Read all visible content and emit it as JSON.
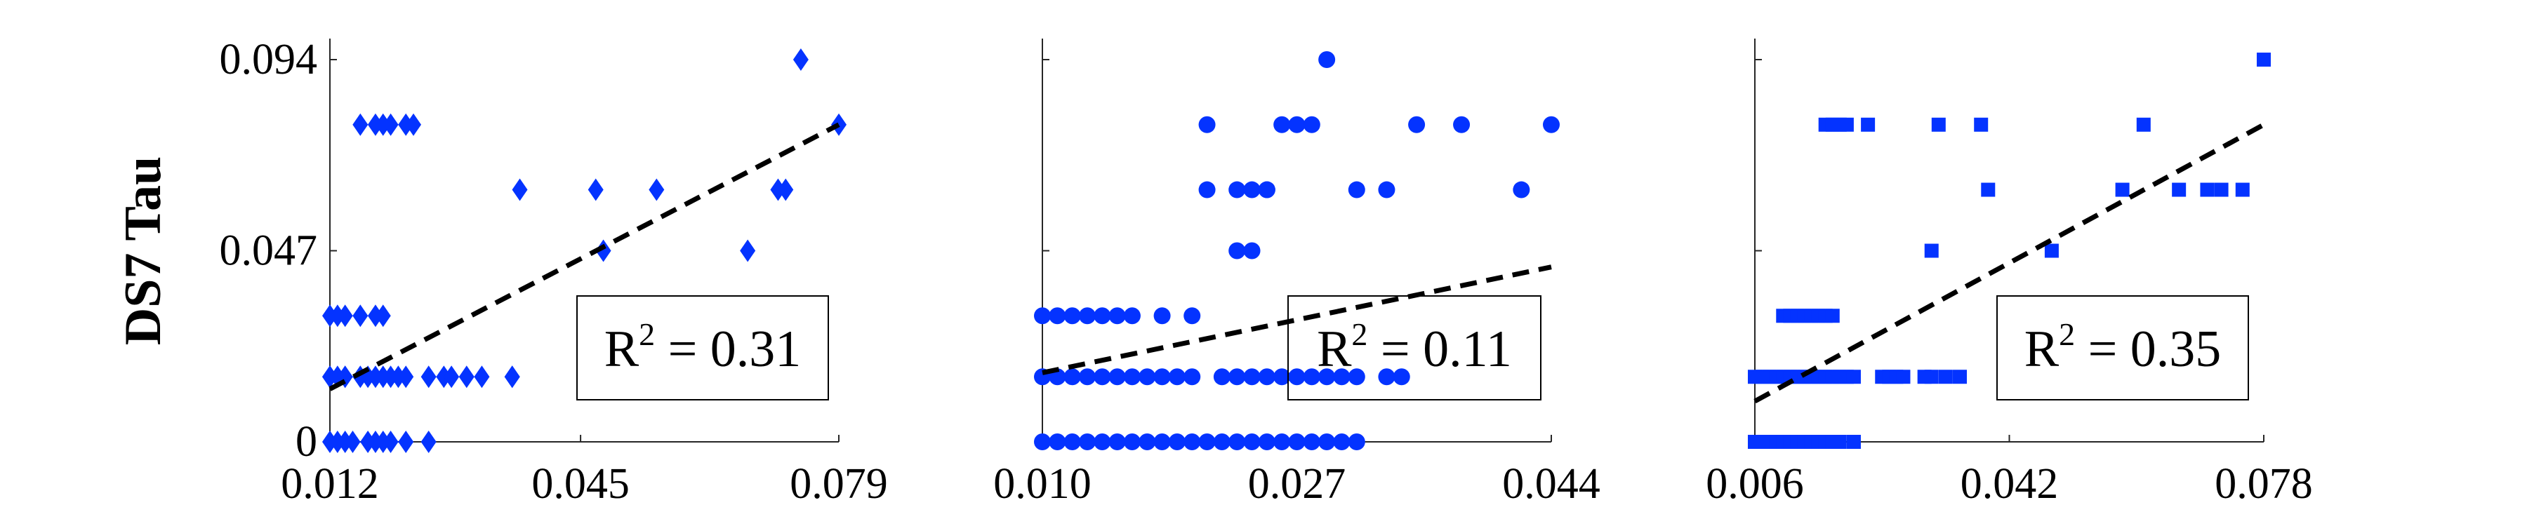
{
  "chart_data": [
    {
      "type": "scatter",
      "marker": "diamond",
      "color": "#0433ff",
      "ylabel": "DS7 Tau",
      "xlim": [
        0.012,
        0.079
      ],
      "ylim": [
        0,
        0.094
      ],
      "xticks": [
        "0.012",
        "0.045",
        "0.079"
      ],
      "yticks": [
        "0",
        "0.047",
        "0.094"
      ],
      "annotation": {
        "r2_base": "R",
        "r2_exp": "2",
        "r2_value": "= 0.31"
      },
      "trend": {
        "x": [
          0.012,
          0.079
        ],
        "y": [
          0.013,
          0.078
        ]
      },
      "x": [
        0.012,
        0.013,
        0.014,
        0.015,
        0.017,
        0.018,
        0.019,
        0.02,
        0.022,
        0.025,
        0.012,
        0.013,
        0.014,
        0.016,
        0.017,
        0.018,
        0.019,
        0.02,
        0.021,
        0.022,
        0.025,
        0.027,
        0.028,
        0.03,
        0.032,
        0.036,
        0.012,
        0.013,
        0.014,
        0.016,
        0.018,
        0.019,
        0.012,
        0.014,
        0.016,
        0.018,
        0.019,
        0.02,
        0.022,
        0.023,
        0.036,
        0.037,
        0.047,
        0.048,
        0.055,
        0.067,
        0.071,
        0.074,
        0.072,
        0.079
      ],
      "y": [
        0,
        0,
        0,
        0,
        0,
        0,
        0,
        0,
        0,
        0,
        0.016,
        0.016,
        0.016,
        0.016,
        0.016,
        0.016,
        0.016,
        0.016,
        0.016,
        0.016,
        0.016,
        0.016,
        0.016,
        0.016,
        0.016,
        0.016,
        0.031,
        0.031,
        0.031,
        0.031,
        0.031,
        0.031,
        0.016,
        0.016,
        0.078,
        0.078,
        0.078,
        0.078,
        0.078,
        0.078,
        0.016,
        0.062,
        0.062,
        0.047,
        0.062,
        0.047,
        0.062,
        0.094,
        0.062,
        0.078
      ]
    },
    {
      "type": "scatter",
      "marker": "circle",
      "color": "#0433ff",
      "xlim": [
        0.01,
        0.044
      ],
      "ylim": [
        0,
        0.094
      ],
      "xticks": [
        "0.010",
        "0.027",
        "0.044"
      ],
      "yticks": [
        "0",
        "0.047",
        "0.094"
      ],
      "annotation": {
        "r2_base": "R",
        "r2_exp": "2",
        "r2_value": "= 0.11"
      },
      "trend": {
        "x": [
          0.01,
          0.044
        ],
        "y": [
          0.017,
          0.043
        ]
      },
      "x": [
        0.01,
        0.011,
        0.012,
        0.013,
        0.014,
        0.015,
        0.016,
        0.017,
        0.018,
        0.019,
        0.02,
        0.021,
        0.022,
        0.023,
        0.024,
        0.025,
        0.026,
        0.027,
        0.028,
        0.029,
        0.03,
        0.031,
        0.01,
        0.011,
        0.012,
        0.013,
        0.014,
        0.015,
        0.016,
        0.017,
        0.018,
        0.019,
        0.02,
        0.022,
        0.023,
        0.024,
        0.025,
        0.026,
        0.027,
        0.028,
        0.029,
        0.03,
        0.031,
        0.033,
        0.034,
        0.01,
        0.011,
        0.012,
        0.013,
        0.014,
        0.015,
        0.016,
        0.018,
        0.02,
        0.023,
        0.024,
        0.025,
        0.021,
        0.021,
        0.023,
        0.024,
        0.025,
        0.026,
        0.027,
        0.028,
        0.029,
        0.031,
        0.033,
        0.035,
        0.038,
        0.042,
        0.044
      ],
      "y": [
        0,
        0,
        0,
        0,
        0,
        0,
        0,
        0,
        0,
        0,
        0,
        0,
        0,
        0,
        0,
        0,
        0,
        0,
        0,
        0,
        0,
        0,
        0.016,
        0.016,
        0.016,
        0.016,
        0.016,
        0.016,
        0.016,
        0.016,
        0.016,
        0.016,
        0.016,
        0.016,
        0.016,
        0.016,
        0.016,
        0.016,
        0.016,
        0.016,
        0.016,
        0.016,
        0.016,
        0.016,
        0.016,
        0.031,
        0.031,
        0.031,
        0.031,
        0.031,
        0.031,
        0.031,
        0.031,
        0.031,
        0.047,
        0.047,
        0.062,
        0.078,
        0.062,
        0.062,
        0.062,
        0.062,
        0.078,
        0.078,
        0.078,
        0.094,
        0.062,
        0.062,
        0.078,
        0.078,
        0.062,
        0.078
      ]
    },
    {
      "type": "scatter",
      "marker": "square",
      "color": "#0433ff",
      "xlim": [
        0.006,
        0.078
      ],
      "ylim": [
        0,
        0.094
      ],
      "xticks": [
        "0.006",
        "0.042",
        "0.078"
      ],
      "yticks": [
        "0",
        "0.047",
        "0.094"
      ],
      "annotation": {
        "r2_base": "R",
        "r2_exp": "2",
        "r2_value": "= 0.35"
      },
      "trend": {
        "x": [
          0.006,
          0.078
        ],
        "y": [
          0.01,
          0.078
        ]
      },
      "x": [
        0.006,
        0.007,
        0.008,
        0.009,
        0.01,
        0.011,
        0.012,
        0.013,
        0.014,
        0.015,
        0.016,
        0.017,
        0.018,
        0.02,
        0.006,
        0.007,
        0.008,
        0.009,
        0.01,
        0.011,
        0.012,
        0.013,
        0.014,
        0.015,
        0.016,
        0.017,
        0.018,
        0.019,
        0.02,
        0.024,
        0.025,
        0.026,
        0.027,
        0.03,
        0.031,
        0.033,
        0.035,
        0.01,
        0.011,
        0.012,
        0.013,
        0.014,
        0.015,
        0.016,
        0.017,
        0.016,
        0.017,
        0.018,
        0.019,
        0.022,
        0.031,
        0.038,
        0.032,
        0.039,
        0.048,
        0.058,
        0.061,
        0.066,
        0.07,
        0.072,
        0.075,
        0.078
      ],
      "y": [
        0,
        0,
        0,
        0,
        0,
        0,
        0,
        0,
        0,
        0,
        0,
        0,
        0,
        0,
        0.016,
        0.016,
        0.016,
        0.016,
        0.016,
        0.016,
        0.016,
        0.016,
        0.016,
        0.016,
        0.016,
        0.016,
        0.016,
        0.016,
        0.016,
        0.016,
        0.016,
        0.016,
        0.016,
        0.016,
        0.016,
        0.016,
        0.016,
        0.031,
        0.031,
        0.031,
        0.031,
        0.031,
        0.031,
        0.031,
        0.031,
        0.078,
        0.078,
        0.078,
        0.078,
        0.078,
        0.047,
        0.078,
        0.078,
        0.062,
        0.047,
        0.062,
        0.078,
        0.062,
        0.062,
        0.062,
        0.062,
        0.094
      ]
    }
  ]
}
